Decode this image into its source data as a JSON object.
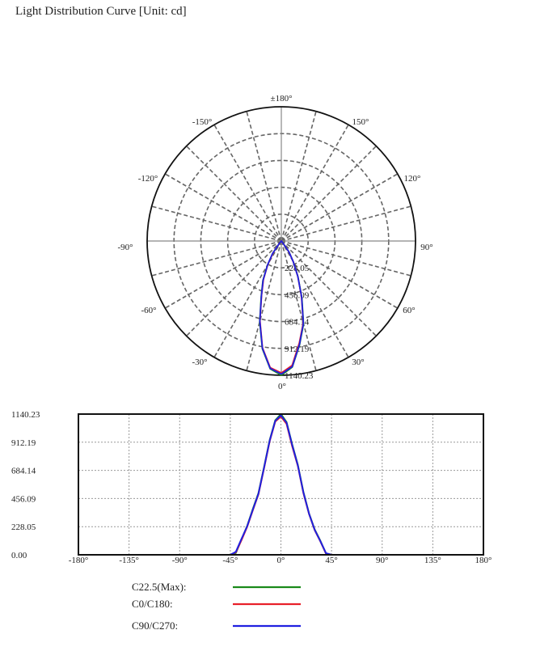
{
  "title": "Light Distribution Curve [Unit: cd]",
  "chart_data": [
    {
      "type": "polar",
      "angle_labels": [
        "±180°",
        "-150°",
        "150°",
        "-120°",
        "120°",
        "-90°",
        "90°",
        "-60°",
        "60°",
        "-30°",
        "30°",
        "0°"
      ],
      "radial_labels": [
        "228.05",
        "456.09",
        "684.14",
        "912.19",
        "1140.23"
      ],
      "rmax": 1140.23,
      "grid": true
    },
    {
      "type": "line",
      "xlim": [
        -180,
        180
      ],
      "ylim": [
        0,
        1140.23
      ],
      "x_ticks": [
        "-180°",
        "-135°",
        "-90°",
        "-45°",
        "0°",
        "45°",
        "90°",
        "135°",
        "180°"
      ],
      "y_ticks": [
        "0.00",
        "228.05",
        "456.09",
        "684.14",
        "912.19",
        "1140.23"
      ],
      "grid": true,
      "legend": "bottom",
      "x": [
        -90,
        -85,
        -80,
        -75,
        -70,
        -65,
        -60,
        -55,
        -50,
        -45,
        -40,
        -35,
        -30,
        -25,
        -20,
        -15,
        -10,
        -5,
        0,
        5,
        10,
        15,
        20,
        25,
        30,
        35,
        40,
        45,
        50,
        55,
        60,
        65,
        70,
        75,
        80,
        85,
        90
      ],
      "series": [
        {
          "name": "C22.5(Max):",
          "color": "#1a8a1a",
          "values": [
            0,
            0,
            0,
            0,
            0,
            0,
            0,
            0,
            0,
            0,
            15,
            125,
            235,
            370,
            500,
            710,
            930,
            1090,
            1140.23,
            1075,
            895,
            730,
            510,
            335,
            205,
            115,
            12,
            0,
            0,
            0,
            0,
            0,
            0,
            0,
            0,
            0,
            0
          ]
        },
        {
          "name": "C0/C180:",
          "color": "#e8202a",
          "values": [
            0,
            0,
            0,
            0,
            0,
            0,
            0,
            0,
            0,
            0,
            20,
            120,
            228,
            360,
            490,
            700,
            920,
            1080,
            1120,
            1060,
            880,
            720,
            500,
            330,
            200,
            110,
            10,
            0,
            0,
            0,
            0,
            0,
            0,
            0,
            0,
            0,
            0
          ]
        },
        {
          "name": "C90/C270:",
          "color": "#2020e0",
          "values": [
            0,
            0,
            0,
            0,
            0,
            0,
            0,
            0,
            0,
            0,
            25,
            130,
            232,
            365,
            495,
            705,
            925,
            1085,
            1130,
            1070,
            890,
            725,
            505,
            332,
            202,
            112,
            14,
            0,
            0,
            0,
            0,
            0,
            0,
            0,
            0,
            0,
            0
          ]
        }
      ]
    }
  ]
}
